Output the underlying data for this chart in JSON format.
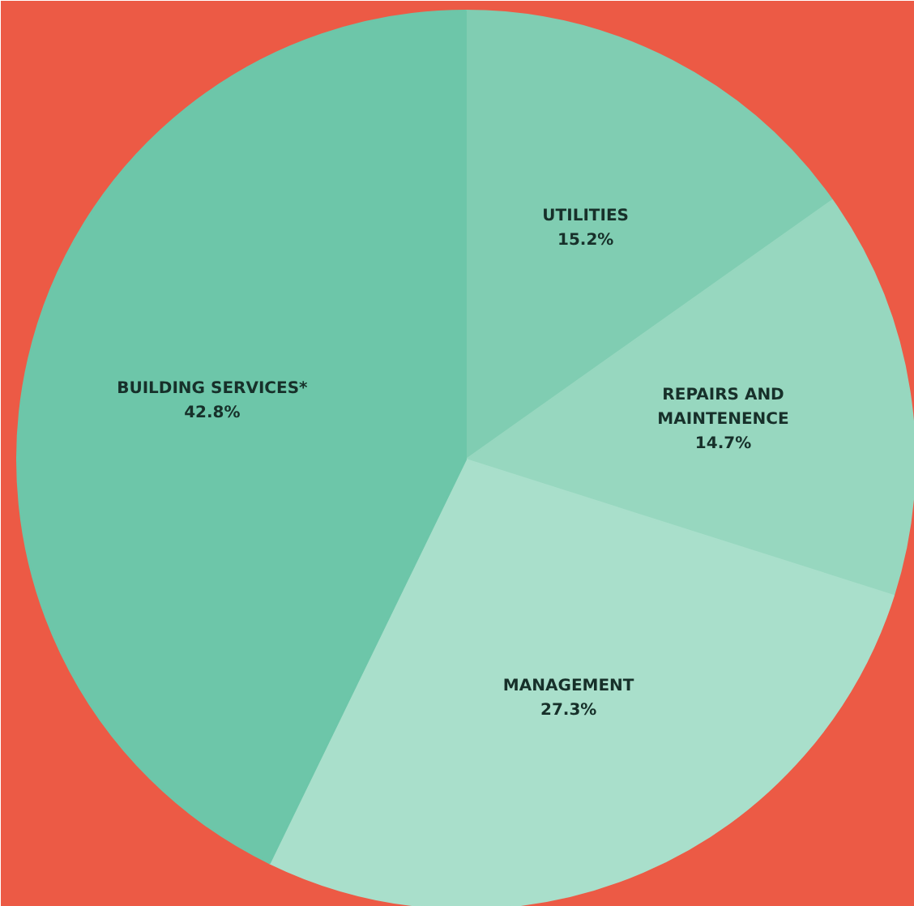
{
  "chart_data": {
    "type": "pie",
    "categories": [
      "UTILITIES",
      "REPAIRS AND\nMAINTENENCE",
      "MANAGEMENT",
      "BUILDING SERVICES*"
    ],
    "values": [
      15.2,
      14.7,
      27.3,
      42.8
    ],
    "colors": [
      "#80cdb2",
      "#97d7bf",
      "#a9dfcb",
      "#6dc6a9"
    ],
    "value_labels": [
      "15.2%",
      "14.7%",
      "27.3%",
      "42.8%"
    ]
  }
}
